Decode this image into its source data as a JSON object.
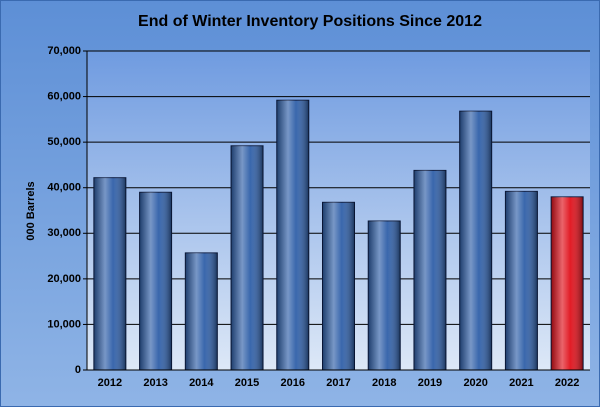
{
  "chart_data": {
    "type": "bar",
    "title": "End of Winter Inventory Positions Since 2012",
    "y_label": "000 Barrels",
    "categories": [
      "2012",
      "2013",
      "2014",
      "2015",
      "2016",
      "2017",
      "2018",
      "2019",
      "2020",
      "2021",
      "2022"
    ],
    "values": [
      42200,
      39000,
      25700,
      49200,
      59200,
      36800,
      32700,
      43800,
      56800,
      39200,
      38000
    ],
    "colors": [
      "#2f5fa8",
      "#2f5fa8",
      "#2f5fa8",
      "#2f5fa8",
      "#2f5fa8",
      "#2f5fa8",
      "#2f5fa8",
      "#2f5fa8",
      "#2f5fa8",
      "#2f5fa8",
      "#e0101a"
    ],
    "ylim": [
      0,
      70000
    ],
    "yticks": [
      0,
      {
        "value": 10000,
        "label": "10,000"
      },
      {
        "value": 20000,
        "label": "20,000"
      },
      {
        "value": 30000,
        "label": "30,000"
      },
      {
        "value": 40000,
        "label": "40,000"
      },
      {
        "value": 50000,
        "label": "50,000"
      },
      {
        "value": 60000,
        "label": "60,000"
      },
      {
        "value": 70000,
        "label": "70,000"
      }
    ],
    "grid": true
  }
}
